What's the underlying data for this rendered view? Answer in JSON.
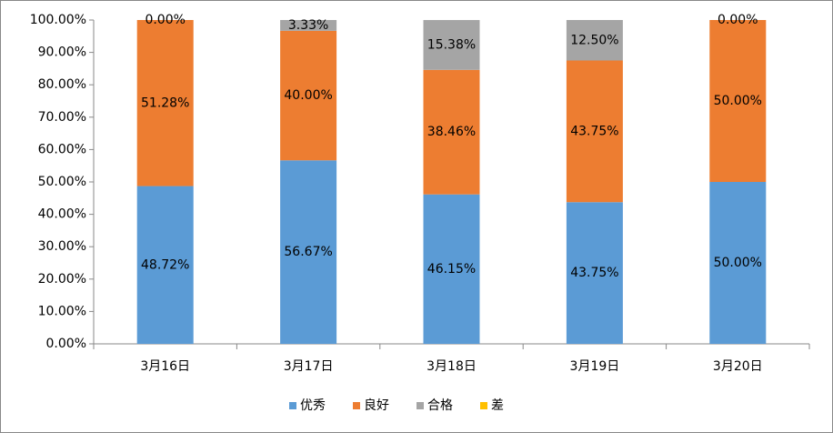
{
  "chart_data": {
    "type": "stacked-bar",
    "categories": [
      "3月16日",
      "3月17日",
      "3月18日",
      "3月19日",
      "3月20日"
    ],
    "series": [
      {
        "name": "优秀",
        "color": "#5b9bd5",
        "values": [
          48.72,
          56.67,
          46.15,
          43.75,
          50.0
        ],
        "value_labels": [
          "48.72%",
          "56.67%",
          "46.15%",
          "43.75%",
          "50.00%"
        ]
      },
      {
        "name": "良好",
        "color": "#ed7d31",
        "values": [
          51.28,
          40.0,
          38.46,
          43.75,
          50.0
        ],
        "value_labels": [
          "51.28%",
          "40.00%",
          "38.46%",
          "43.75%",
          "50.00%"
        ]
      },
      {
        "name": "合格",
        "color": "#a5a5a5",
        "values": [
          0.0,
          3.33,
          15.38,
          12.5,
          0.0
        ],
        "value_labels": [
          "0.00%",
          "3.33%",
          "15.38%",
          "12.50%",
          "0.00%"
        ]
      },
      {
        "name": "差",
        "color": "#ffc000",
        "values": [
          0,
          0,
          0,
          0,
          0
        ]
      }
    ],
    "ylim": [
      0,
      100
    ],
    "yticks": [
      {
        "value": 0,
        "label": "0.00%"
      },
      {
        "value": 10,
        "label": "10.00%"
      },
      {
        "value": 20,
        "label": "20.00%"
      },
      {
        "value": 30,
        "label": "30.00%"
      },
      {
        "value": 40,
        "label": "40.00%"
      },
      {
        "value": 50,
        "label": "50.00%"
      },
      {
        "value": 60,
        "label": "60.00%"
      },
      {
        "value": 70,
        "label": "70.00%"
      },
      {
        "value": 80,
        "label": "80.00%"
      },
      {
        "value": 90,
        "label": "90.00%"
      },
      {
        "value": 100,
        "label": "100.00%"
      }
    ],
    "legend": "bottom"
  }
}
